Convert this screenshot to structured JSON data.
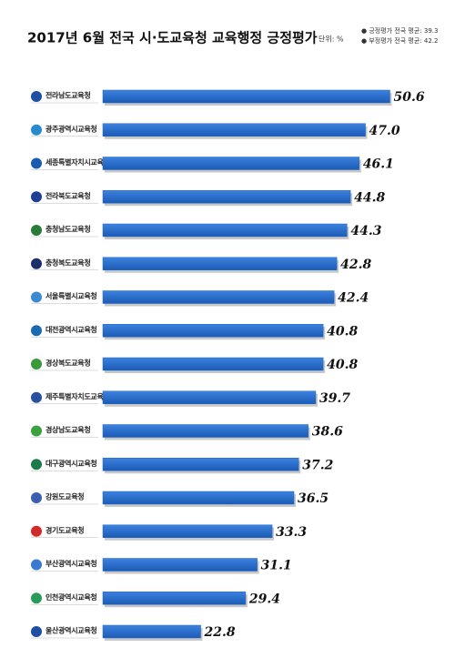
{
  "chart_data": {
    "type": "bar",
    "orientation": "horizontal",
    "title": "2017년 6월 전국 시·도교육청 교육행정 긍정평가",
    "unit": "단위: %",
    "notes": [
      "● 긍정평가 전국 평균: 39.3",
      "● 부정평가 전국 평균: 42.2"
    ],
    "categories": [
      "전라남도교육청",
      "광주광역시교육청",
      "세종특별자치시교육청",
      "전라북도교육청",
      "충청남도교육청",
      "충청북도교육청",
      "서울특별시교육청",
      "대전광역시교육청",
      "경상북도교육청",
      "제주특별자치도교육청",
      "경상남도교육청",
      "대구광역시교육청",
      "강원도교육청",
      "경기도교육청",
      "부산광역시교육청",
      "인천광역시교육청",
      "울산광역시교육청"
    ],
    "values": [
      50.6,
      47.0,
      46.1,
      44.8,
      44.3,
      42.8,
      42.4,
      40.8,
      40.8,
      39.7,
      38.6,
      37.2,
      36.5,
      33.3,
      31.1,
      29.4,
      22.8
    ],
    "value_labels": [
      "50.6",
      "47.0",
      "46.1",
      "44.8",
      "44.3",
      "42.8",
      "42.4",
      "40.8",
      "40.8",
      "39.7",
      "38.6",
      "37.2",
      "36.5",
      "33.3",
      "31.1",
      "29.4",
      "22.8"
    ],
    "color": "#2468c8"
  }
}
